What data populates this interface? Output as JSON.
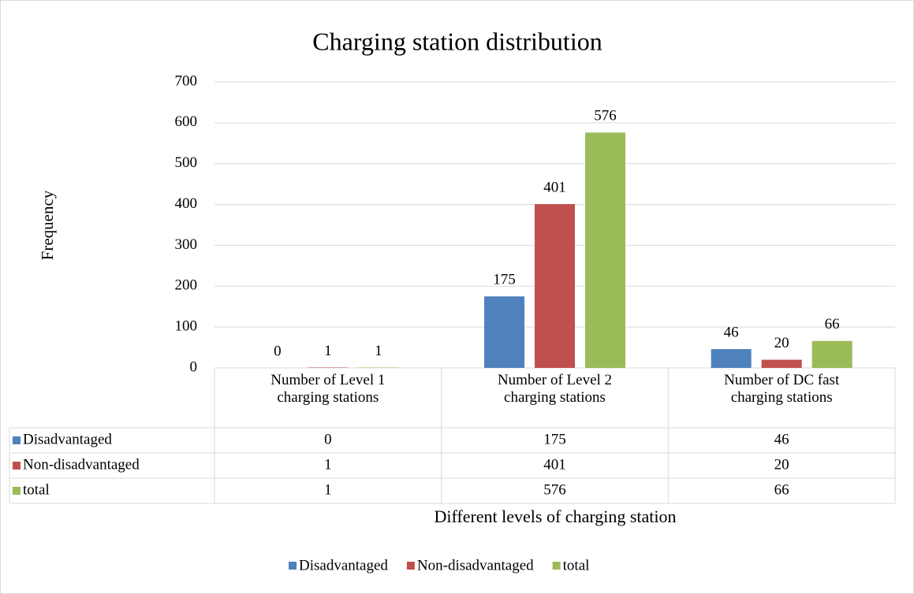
{
  "chart_data": {
    "type": "bar",
    "title": "Charging station distribution",
    "x_label": "Different levels of charging station",
    "y_label": "Frequency",
    "categories": [
      "Number of Level 1 charging stations",
      "Number of Level 2 charging stations",
      "Number of DC fast charging stations"
    ],
    "series": [
      {
        "name": "Disadvantaged",
        "color": "#4f81bd",
        "values": [
          0,
          175,
          46
        ]
      },
      {
        "name": "Non-disadvantaged",
        "color": "#c0504d",
        "values": [
          1,
          401,
          20
        ]
      },
      {
        "name": "total",
        "color": "#9bbb59",
        "values": [
          1,
          576,
          66
        ]
      }
    ],
    "ylim": [
      0,
      700
    ],
    "yticks": [
      0,
      100,
      200,
      300,
      400,
      500,
      600,
      700
    ],
    "grid": true,
    "legend": "bottom",
    "data_table": true
  }
}
